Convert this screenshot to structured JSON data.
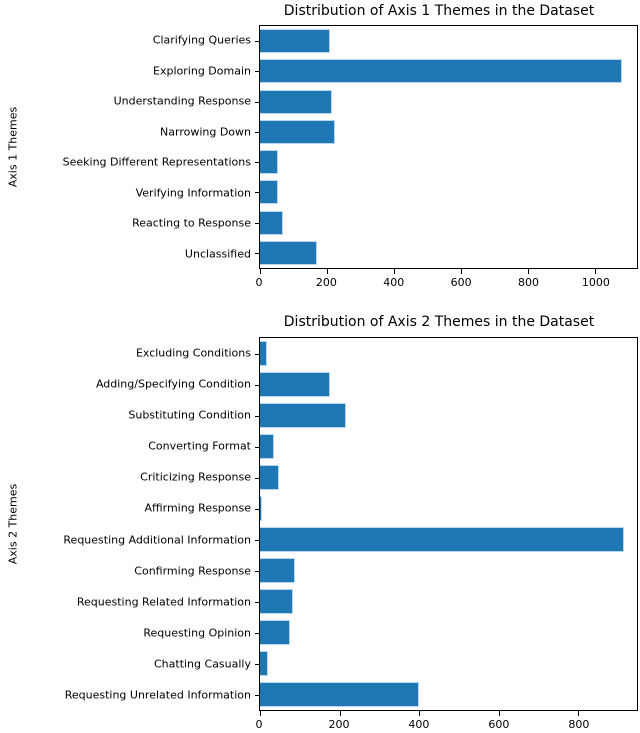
{
  "figure": {
    "bar_color": "#1f77b4",
    "bar_edge_color": "#b9d7ee",
    "axis_color": "#000000",
    "background_color": "#ffffff"
  },
  "chart_data": [
    {
      "type": "bar",
      "orientation": "horizontal",
      "title": "Distribution of Axis 1 Themes in the Dataset",
      "ylabel": "Axis 1 Themes",
      "xlabel": "",
      "grid": false,
      "legend": null,
      "categories": [
        "Clarifying Queries",
        "Exploring Domain",
        "Understanding Response",
        "Narrowing Down",
        "Seeking Different Representations",
        "Verifying Information",
        "Reacting to Response",
        "Unclassified"
      ],
      "values": [
        210,
        1080,
        215,
        225,
        55,
        55,
        70,
        170
      ],
      "xlim": [
        0,
        1125
      ],
      "xticks": [
        0,
        200,
        400,
        600,
        800,
        1000
      ]
    },
    {
      "type": "bar",
      "orientation": "horizontal",
      "title": "Distribution of Axis 2 Themes in the Dataset",
      "ylabel": "Axis 2 Themes",
      "xlabel": "",
      "grid": false,
      "legend": null,
      "categories": [
        "Excluding Conditions",
        "Adding/Specifying Condition",
        "Substituting Condition",
        "Converting Format",
        "Criticizing Response",
        "Affirming Response",
        "Requesting Additional Information",
        "Confirming Response",
        "Requesting Related Information",
        "Requesting Opinion",
        "Chatting Casually",
        "Requesting Unrelated Information"
      ],
      "values": [
        18,
        176,
        216,
        36,
        49,
        4,
        915,
        88,
        84,
        75,
        19,
        400
      ],
      "xlim": [
        0,
        948
      ],
      "xticks": [
        0,
        200,
        400,
        600,
        800
      ]
    }
  ]
}
